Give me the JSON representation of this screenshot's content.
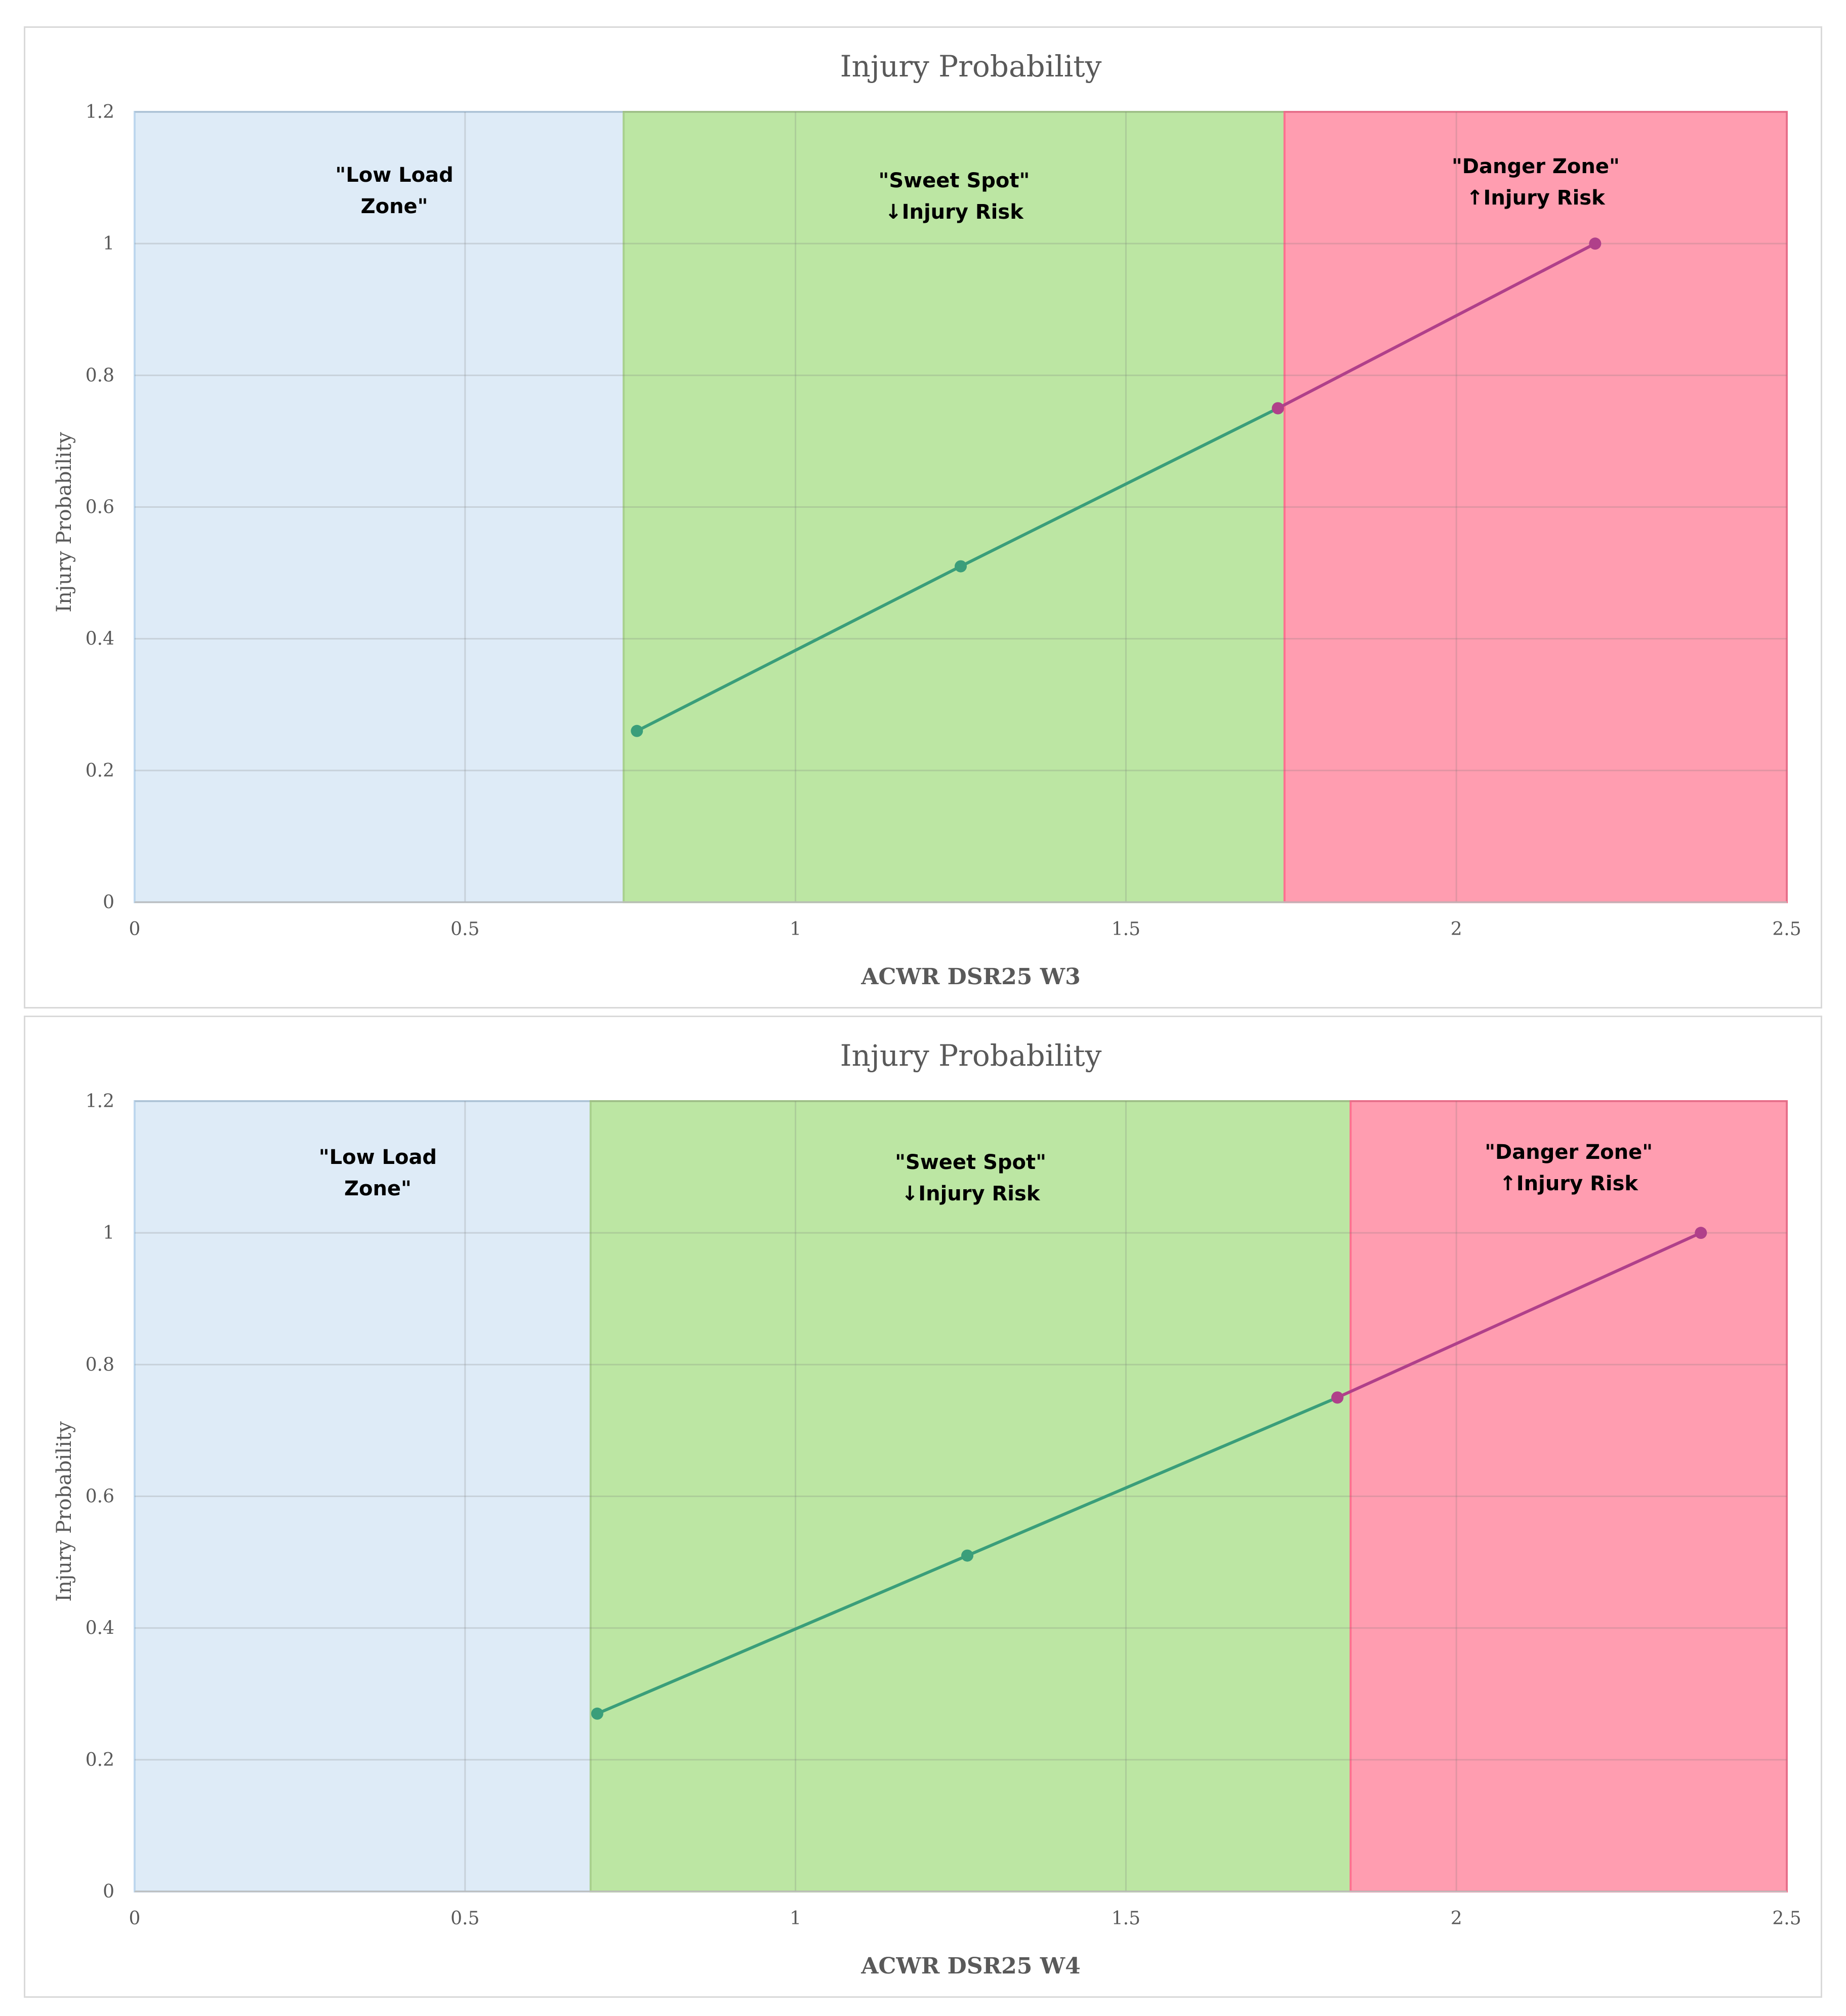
{
  "chart_data": [
    {
      "type": "line",
      "title": "Injury Probability",
      "xlabel": "ACWR DSR25 W3",
      "ylabel": "Injury Probability",
      "xlim": [
        0,
        2.5
      ],
      "ylim": [
        0,
        1.2
      ],
      "x_ticks": [
        "0",
        "0.5",
        "1",
        "1.5",
        "2",
        "2.5"
      ],
      "y_ticks": [
        "0",
        "0.2",
        "0.4",
        "0.6",
        "0.8",
        "1",
        "1.2"
      ],
      "grid": true,
      "zones": [
        {
          "from": 0,
          "to": 0.74,
          "label_lines": [
            "\"Low Load",
            "Zone\""
          ],
          "color": "#deebf7"
        },
        {
          "from": 0.74,
          "to": 1.74,
          "label_lines": [
            "\"Sweet Spot\"",
            "↓Injury Risk"
          ],
          "color": "#bce6a3"
        },
        {
          "from": 1.74,
          "to": 2.5,
          "label_lines": [
            "\"Danger Zone\"",
            "↑Injury Risk"
          ],
          "color": "#ff9db0"
        }
      ],
      "series": [
        {
          "color": "#3a9e7a",
          "x": [
            0.76,
            1.25,
            1.73
          ],
          "y": [
            0.26,
            0.51,
            0.75
          ]
        },
        {
          "color": "#b0408a",
          "x": [
            1.73,
            2.21
          ],
          "y": [
            0.75,
            1.0
          ]
        }
      ]
    },
    {
      "type": "line",
      "title": "Injury Probability",
      "xlabel": "ACWR DSR25 W4",
      "ylabel": "Injury Probability",
      "xlim": [
        0,
        2.5
      ],
      "ylim": [
        0,
        1.2
      ],
      "x_ticks": [
        "0",
        "0.5",
        "1",
        "1.5",
        "2",
        "2.5"
      ],
      "y_ticks": [
        "0",
        "0.2",
        "0.4",
        "0.6",
        "0.8",
        "1",
        "1.2"
      ],
      "grid": true,
      "zones": [
        {
          "from": 0,
          "to": 0.69,
          "label_lines": [
            "\"Low Load",
            "Zone\""
          ],
          "color": "#deebf7"
        },
        {
          "from": 0.69,
          "to": 1.84,
          "label_lines": [
            "\"Sweet Spot\"",
            "↓Injury Risk"
          ],
          "color": "#bce6a3"
        },
        {
          "from": 1.84,
          "to": 2.5,
          "label_lines": [
            "\"Danger Zone\"",
            "↑Injury Risk"
          ],
          "color": "#ff9db0"
        }
      ],
      "series": [
        {
          "color": "#3a9e7a",
          "x": [
            0.7,
            1.26,
            1.82
          ],
          "y": [
            0.27,
            0.51,
            0.75
          ]
        },
        {
          "color": "#b0408a",
          "x": [
            1.82,
            2.37
          ],
          "y": [
            0.75,
            1.0
          ]
        }
      ]
    }
  ]
}
